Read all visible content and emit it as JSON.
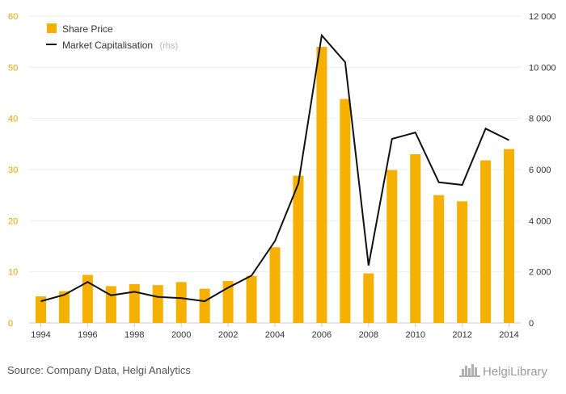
{
  "chart_data": {
    "type": "bar",
    "categories": [
      "1994",
      "1995",
      "1996",
      "1997",
      "1998",
      "1999",
      "2000",
      "2001",
      "2002",
      "2003",
      "2004",
      "2005",
      "2006",
      "2007",
      "2008",
      "2009",
      "2010",
      "2011",
      "2012",
      "2013",
      "2014"
    ],
    "x_tick_labels": [
      "1994",
      "1996",
      "1998",
      "2000",
      "2002",
      "2004",
      "2006",
      "2008",
      "2010",
      "2012",
      "2014"
    ],
    "series": [
      {
        "name": "Share Price",
        "type": "bar",
        "axis": "left",
        "color": "#f5b000",
        "values": [
          5.2,
          6.2,
          9.4,
          7.2,
          7.6,
          7.4,
          8.0,
          6.7,
          8.2,
          9.2,
          14.8,
          28.8,
          54.0,
          43.8,
          9.7,
          29.9,
          33.0,
          25.0,
          23.8,
          31.8,
          34.0
        ]
      },
      {
        "name": "Market Capitalisation",
        "name_suffix": "(rhs)",
        "type": "line",
        "axis": "right",
        "color": "#111111",
        "values": [
          850,
          1100,
          1600,
          1080,
          1220,
          1020,
          970,
          850,
          1380,
          1850,
          3200,
          5450,
          11250,
          10200,
          2250,
          7200,
          7450,
          5500,
          5400,
          7600,
          7150
        ]
      }
    ],
    "y_left": {
      "lim": [
        0,
        60
      ],
      "ticks": [
        0,
        10,
        20,
        30,
        40,
        50,
        60
      ],
      "tick_labels": [
        "0",
        "10",
        "20",
        "30",
        "40",
        "50",
        "60"
      ],
      "label_color": "#e8a300"
    },
    "y_right": {
      "lim": [
        0,
        12000
      ],
      "ticks": [
        0,
        2000,
        4000,
        6000,
        8000,
        10000,
        12000
      ],
      "tick_labels": [
        "0",
        "2 000",
        "4 000",
        "6 000",
        "8 000",
        "10 000",
        "12 000"
      ]
    },
    "grid": true,
    "legend_position": "top-left",
    "source": "Source: Company Data, Helgi Analytics",
    "brand": "HelgiLibrary"
  }
}
